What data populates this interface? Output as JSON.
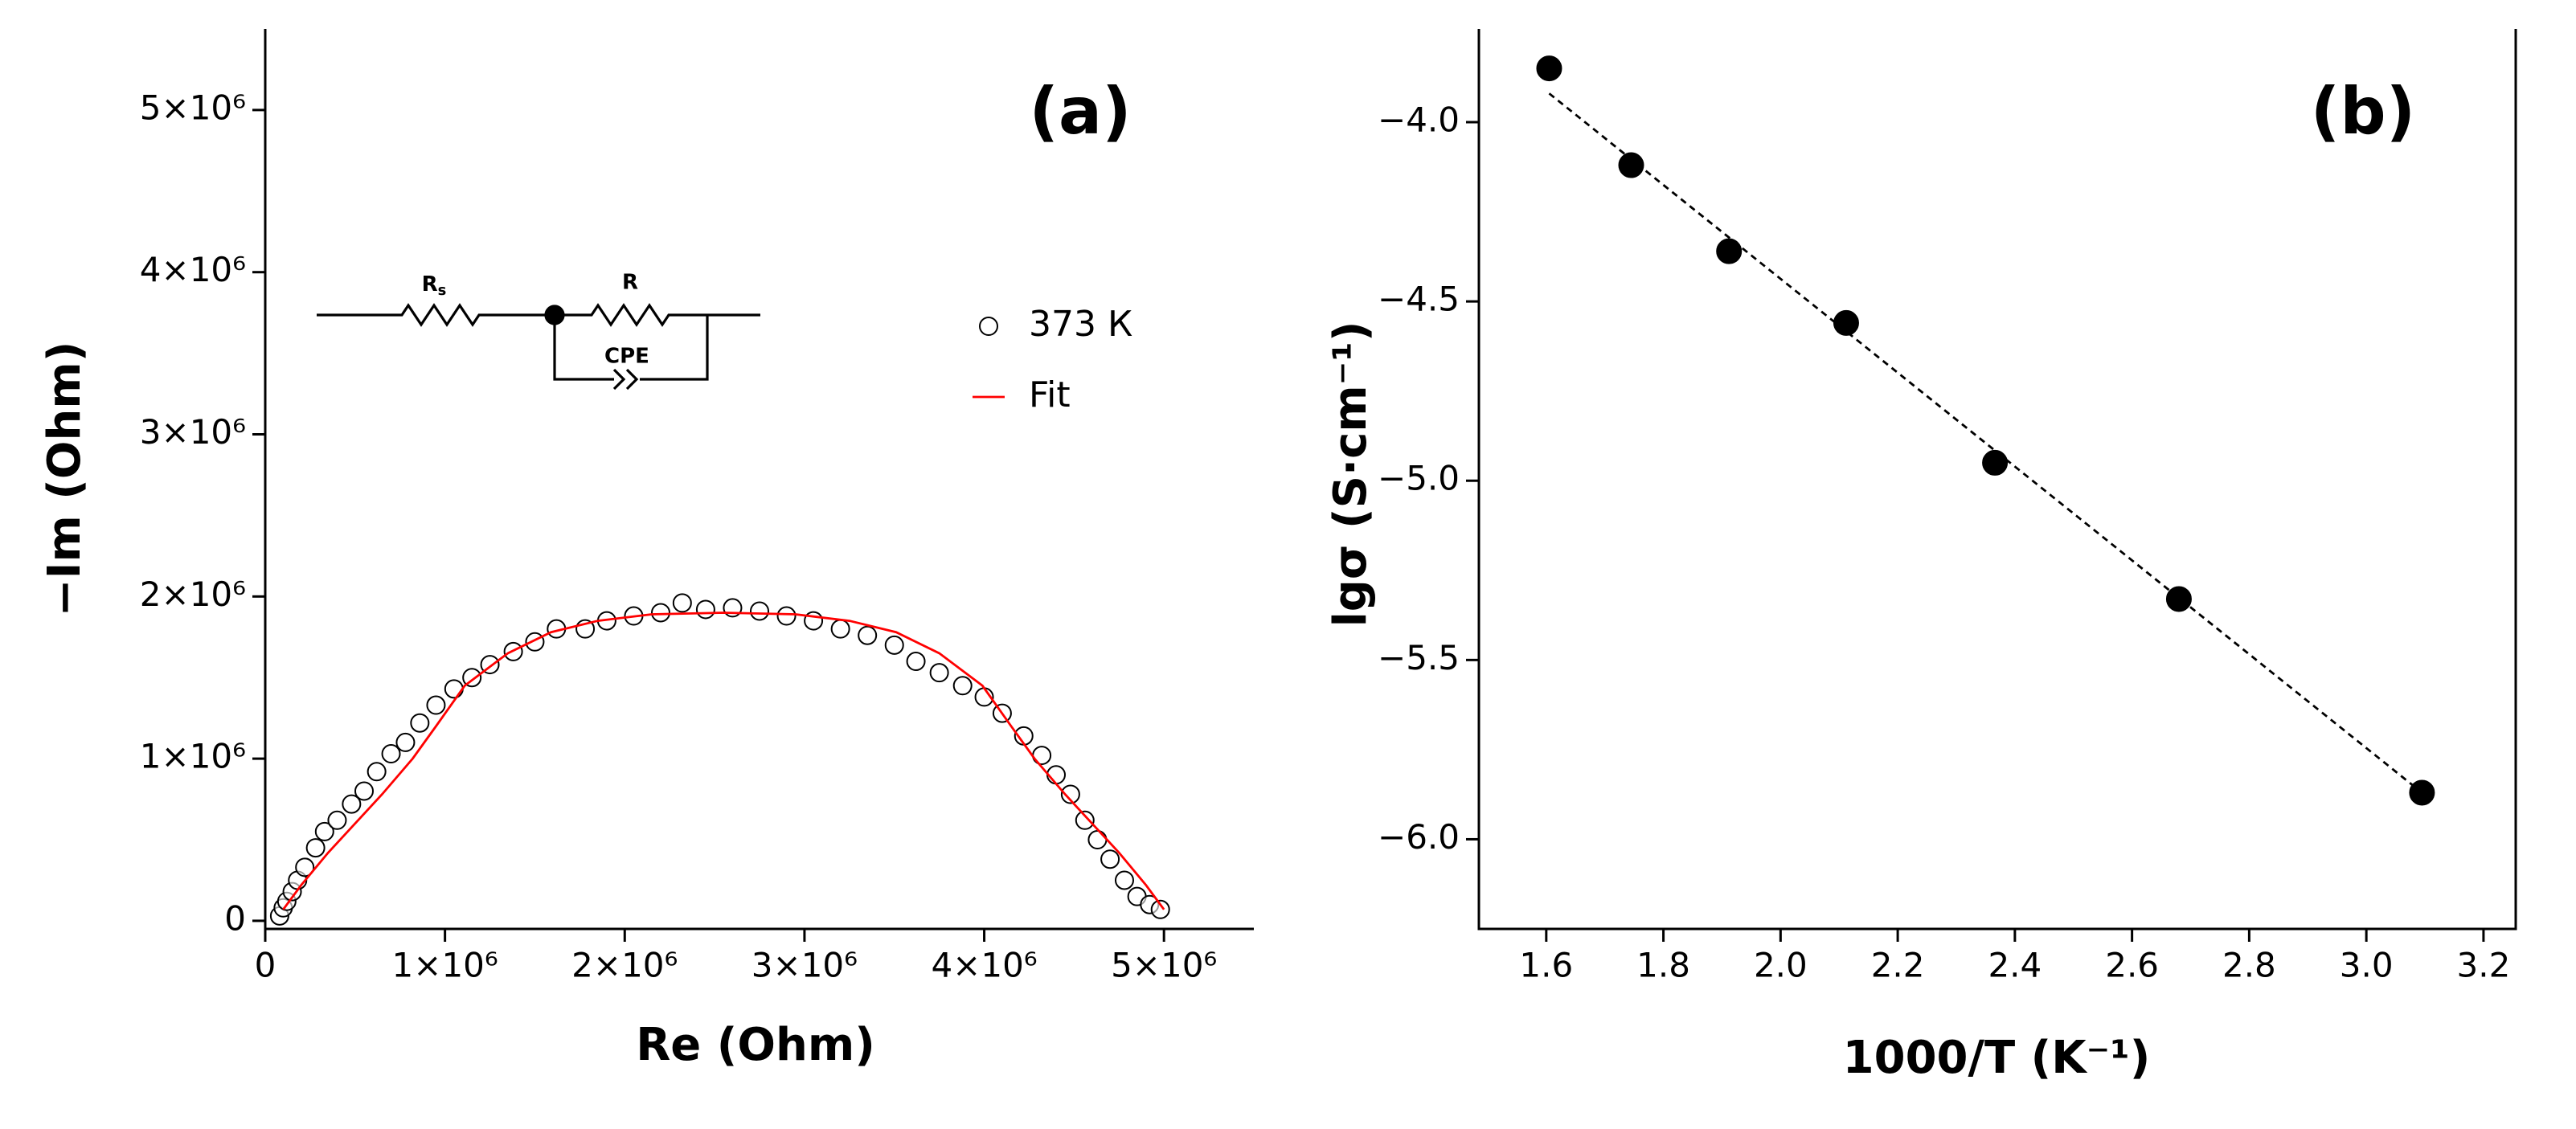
{
  "chart_data": [
    {
      "type": "scatter",
      "annotation": "(a)",
      "x_label": "Re (Ohm)",
      "y_label": "−Im (Ohm)",
      "circuit_labels": [
        "R",
        "s",
        "R",
        "CPE"
      ],
      "xlim": [
        0,
        5500000
      ],
      "ylim": [
        -50000,
        5500000
      ],
      "xticks": [
        0,
        {
          "value": 1000000,
          "label": "1×10⁶"
        },
        {
          "value": 2000000,
          "label": "2×10⁶"
        },
        {
          "value": 3000000,
          "label": "3×10⁶"
        },
        {
          "value": 4000000,
          "label": "4×10⁶"
        },
        {
          "value": 5000000,
          "label": "5×10⁶"
        }
      ],
      "yticks": [
        0,
        {
          "value": 1000000,
          "label": "1×10⁶"
        },
        {
          "value": 2000000,
          "label": "2×10⁶"
        },
        {
          "value": 3000000,
          "label": "3×10⁶"
        },
        {
          "value": 4000000,
          "label": "4×10⁶"
        },
        {
          "value": 5000000,
          "label": "5×10⁶"
        }
      ],
      "series": [
        {
          "name": "373 К",
          "color": "#000000",
          "mode": "markers",
          "marker": "open-circle",
          "x": [
            80000,
            100000,
            120000,
            150000,
            180000,
            220000,
            280000,
            330000,
            400000,
            480000,
            550000,
            620000,
            700000,
            780000,
            860000,
            950000,
            1050000,
            1150000,
            1250000,
            1380000,
            1500000,
            1620000,
            1780000,
            1900000,
            2050000,
            2200000,
            2320000,
            2450000,
            2600000,
            2750000,
            2900000,
            3050000,
            3200000,
            3350000,
            3500000,
            3620000,
            3750000,
            3880000,
            4000000,
            4100000,
            4220000,
            4320000,
            4400000,
            4480000,
            4560000,
            4630000,
            4700000,
            4780000,
            4850000,
            4920000,
            4980000
          ],
          "values": [
            30000,
            80000,
            120000,
            180000,
            250000,
            330000,
            450000,
            550000,
            620000,
            720000,
            800000,
            920000,
            1030000,
            1100000,
            1220000,
            1330000,
            1430000,
            1500000,
            1580000,
            1660000,
            1720000,
            1800000,
            1800000,
            1850000,
            1880000,
            1900000,
            1960000,
            1920000,
            1930000,
            1910000,
            1880000,
            1850000,
            1800000,
            1760000,
            1700000,
            1600000,
            1530000,
            1450000,
            1380000,
            1280000,
            1140000,
            1020000,
            900000,
            780000,
            620000,
            500000,
            380000,
            250000,
            150000,
            100000,
            70000
          ]
        },
        {
          "name": "Fit",
          "color": "#ff0000",
          "mode": "line",
          "x": [
            100000,
            200000,
            350000,
            500000,
            650000,
            820000,
            950000,
            1110000,
            1350000,
            1590000,
            1850000,
            2150000,
            2550000,
            2950000,
            3250000,
            3510000,
            3750000,
            3990000,
            4150000,
            4280000,
            4450000,
            4600000,
            4750000,
            4900000,
            5000000
          ],
          "values": [
            70000,
            220000,
            420000,
            600000,
            780000,
            1000000,
            1200000,
            1450000,
            1650000,
            1780000,
            1850000,
            1890000,
            1900000,
            1890000,
            1850000,
            1780000,
            1650000,
            1450000,
            1200000,
            1000000,
            780000,
            600000,
            420000,
            220000,
            70000
          ]
        }
      ]
    },
    {
      "type": "scatter",
      "annotation": "(b)",
      "x_label": "1000/T (K⁻¹)",
      "y_label": "lgσ (S·cm⁻¹)",
      "xlim": [
        1.485,
        3.255
      ],
      "ylim": [
        -6.25,
        -3.74
      ],
      "xticks": [
        1.6,
        1.8,
        {
          "value": 2,
          "label": "2.0"
        },
        2.2,
        2.4,
        2.6,
        2.8,
        {
          "value": 3,
          "label": "3.0"
        },
        3.2
      ],
      "yticks": [
        {
          "value": -4,
          "label": "−4.0"
        },
        {
          "value": -4.5,
          "label": "−4.5"
        },
        {
          "value": -5,
          "label": "−5.0"
        },
        {
          "value": -5.5,
          "label": "−5.5"
        },
        {
          "value": -6,
          "label": "−6.0"
        }
      ],
      "series": [
        {
          "color": "#000000",
          "mode": "markers",
          "marker": "circle",
          "x": [
            1.605,
            1.745,
            1.912,
            2.112,
            2.366,
            2.68,
            3.095
          ],
          "values": [
            -3.85,
            -4.12,
            -4.36,
            -4.56,
            -4.95,
            -5.33,
            -5.87
          ]
        },
        {
          "color": "#000000",
          "mode": "line",
          "dashed": true,
          "x": [
            1.605,
            3.095
          ],
          "values": [
            -3.92,
            -5.87
          ]
        }
      ]
    }
  ]
}
